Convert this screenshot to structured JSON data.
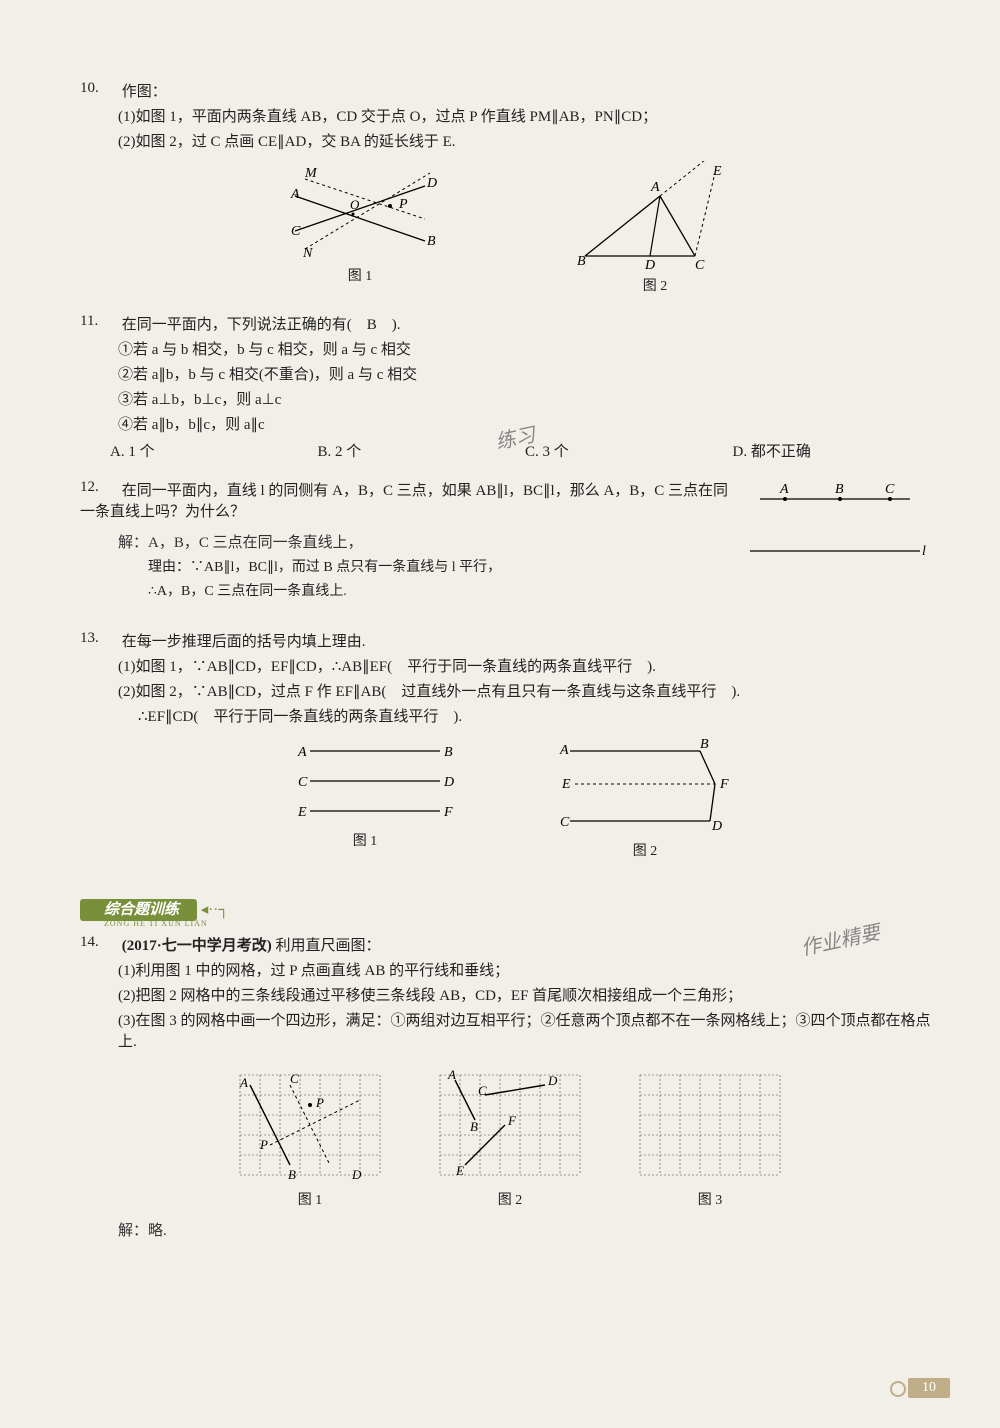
{
  "q10": {
    "num": "10.",
    "title": "作图：",
    "part1": "(1)如图 1，平面内两条直线 AB，CD 交于点 O，过点 P 作直线 PM∥AB，PN∥CD；",
    "part2": "(2)如图 2，过 C 点画 CE∥AD，交 BA 的延长线于 E.",
    "cap1": "图 1",
    "cap2": "图 2",
    "fig1": {
      "labels": {
        "M": "M",
        "A": "A",
        "C": "C",
        "N": "N",
        "D": "D",
        "P": "P",
        "B": "B",
        "O": "O"
      },
      "solid_color": "#000000",
      "dotted_color": "#000000"
    },
    "fig2": {
      "labels": {
        "E": "E",
        "A": "A",
        "B": "B",
        "C": "C",
        "D": "D"
      },
      "solid_color": "#000000"
    }
  },
  "q11": {
    "num": "11.",
    "stem": "在同一平面内，下列说法正确的有(　B　).",
    "l1": "①若 a 与 b 相交，b 与 c 相交，则 a 与 c 相交",
    "l2": "②若 a∥b，b 与 c 相交(不重合)，则 a 与 c 相交",
    "l3": "③若 a⊥b，b⊥c，则 a⊥c",
    "l4": "④若 a∥b，b∥c，则 a∥c",
    "optA": "A. 1 个",
    "optB": "B. 2 个",
    "optC": "C. 3 个",
    "optD": "D. 都不正确",
    "hand": "练习"
  },
  "q12": {
    "num": "12.",
    "stem": "在同一平面内，直线 l 的同侧有 A，B，C 三点，如果 AB∥l，BC∥l，那么 A，B，C 三点在同一条直线上吗？为什么？",
    "sol_label": "解：",
    "s1": "A，B，C 三点在同一条直线上，",
    "s2": "理由：∵AB∥l，BC∥l，而过 B 点只有一条直线与 l 平行，",
    "s3": "∴A，B，C 三点在同一条直线上.",
    "labels": {
      "A": "A",
      "B": "B",
      "C": "C",
      "l": "l"
    }
  },
  "q13": {
    "num": "13.",
    "stem": "在每一步推理后面的括号内填上理由.",
    "p1a": "(1)如图 1，∵AB∥CD，EF∥CD，∴AB∥EF(",
    "p1ans": "　平行于同一条直线的两条直线平行　",
    "p1b": ").",
    "p2a": "(2)如图 2，∵AB∥CD，过点 F 作 EF∥AB(",
    "p2ans": "　过直线外一点有且只有一条直线与这条直线平行　",
    "p2b": ").",
    "p3a": "∴EF∥CD(",
    "p3ans": "　平行于同一条直线的两条直线平行　",
    "p3b": ").",
    "cap1": "图 1",
    "cap2": "图 2",
    "fig1": {
      "A": "A",
      "B": "B",
      "C": "C",
      "D": "D",
      "E": "E",
      "F": "F"
    },
    "fig2": {
      "A": "A",
      "B": "B",
      "C": "C",
      "D": "D",
      "E": "E",
      "F": "F"
    }
  },
  "section": {
    "title": "综合题训练",
    "sub": "ZONG HE TI XUN LIAN"
  },
  "q14": {
    "num": "14.",
    "src": "(2017·七一中学月考改)",
    "stem": "利用直尺画图：",
    "p1": "(1)利用图 1 中的网格，过 P 点画直线 AB 的平行线和垂线；",
    "p2": "(2)把图 2 网格中的三条线段通过平移使三条线段 AB，CD，EF 首尾顺次相接组成一个三角形；",
    "p3": "(3)在图 3 的网格中画一个四边形，满足：①两组对边互相平行；②任意两个顶点都不在一条网格线上；③四个顶点都在格点上.",
    "cap1": "图 1",
    "cap2": "图 2",
    "cap3": "图 3",
    "sol": "解：略.",
    "hand": "作业精要",
    "grid": {
      "cols": 7,
      "rows": 5,
      "cell": 20,
      "stroke": "#444444",
      "dash": "2 2"
    },
    "fig1": {
      "A": "A",
      "B": "B",
      "C": "C",
      "D": "D",
      "P": "P"
    },
    "fig2": {
      "A": "A",
      "B": "B",
      "C": "C",
      "D": "D",
      "E": "E",
      "F": "F"
    }
  },
  "page_number": "10"
}
